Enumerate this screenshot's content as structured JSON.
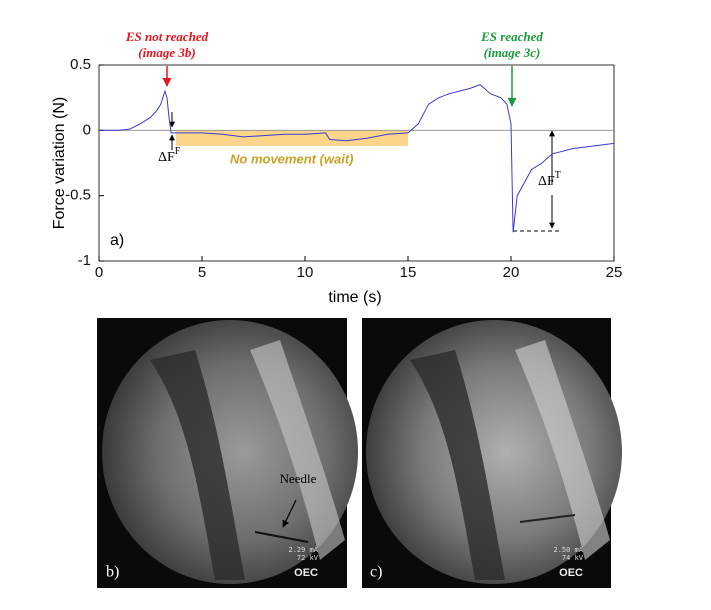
{
  "chart_data": {
    "type": "line",
    "annotations": {
      "not_reached": "ES not reached",
      "not_reached_ref": "(image 3b)",
      "reached": "ES reached",
      "reached_ref": "(image 3c)",
      "delta_ff": "ΔF",
      "delta_ff_sup": "F",
      "wait": "No movement (wait)",
      "delta_ft": "ΔF",
      "delta_ft_sup": "T",
      "panel": "a)"
    },
    "xlabel": "time (s)",
    "ylabel": "Force variation (N)",
    "xlim": [
      0,
      25
    ],
    "ylim": [
      -1,
      0.5
    ],
    "xticks": [
      0,
      5,
      10,
      15,
      20,
      25
    ],
    "yticks": [
      -1,
      -0.5,
      0,
      0.5
    ],
    "grid": false,
    "series": [
      {
        "color": "#3a3ad0",
        "x": [
          0,
          1,
          1.5,
          2,
          2.5,
          2.8,
          3,
          3.2,
          3.3,
          3.4,
          3.5,
          4,
          5,
          6,
          7,
          8,
          9,
          10,
          11,
          11.2,
          12,
          13,
          14,
          15,
          15.5,
          16,
          16.5,
          17,
          17.5,
          18,
          18.5,
          19,
          19.5,
          19.8,
          20,
          20.1,
          20.3,
          21,
          21.5,
          22,
          23,
          24,
          25
        ],
        "values": [
          0,
          0,
          0.01,
          0.05,
          0.1,
          0.15,
          0.2,
          0.3,
          0.25,
          0.1,
          -0.02,
          -0.02,
          -0.02,
          -0.03,
          -0.05,
          -0.04,
          -0.03,
          -0.03,
          -0.02,
          -0.07,
          -0.08,
          -0.06,
          -0.03,
          -0.02,
          0.05,
          0.2,
          0.25,
          0.28,
          0.3,
          0.32,
          0.35,
          0.28,
          0.25,
          0.2,
          0.05,
          -0.78,
          -0.5,
          -0.3,
          -0.25,
          -0.18,
          -0.14,
          -0.12,
          -0.1
        ]
      }
    ]
  },
  "images": [
    {
      "panel": "b)",
      "label": "Needle",
      "readout": [
        "2.29 mA",
        "72 kV"
      ],
      "brand": "OEC"
    },
    {
      "panel": "c)",
      "readout": [
        "2.50 mA",
        "74 kV"
      ],
      "brand": "OEC"
    }
  ]
}
